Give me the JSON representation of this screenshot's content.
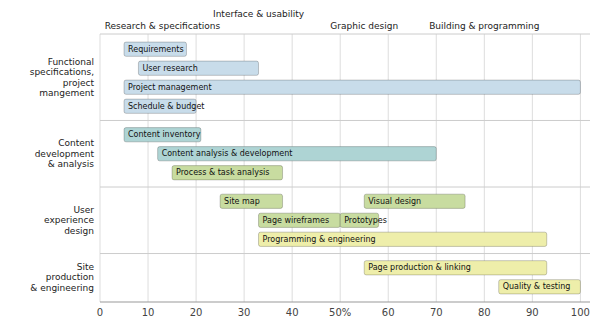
{
  "chart_data": {
    "type": "gantt",
    "orientation": "horizontal",
    "xlim": [
      0,
      102
    ],
    "xticks": [
      0,
      10,
      20,
      30,
      40,
      {
        "value": 50,
        "label": "50%"
      },
      60,
      70,
      80,
      90,
      100
    ],
    "grid": true,
    "annotations": [
      {
        "text": "Research & specifications",
        "x": 13
      },
      {
        "text": "Interface & usability",
        "x": 33
      },
      {
        "text": "Graphic design",
        "x": 55
      },
      {
        "text": "Building & programming",
        "x": 80
      }
    ],
    "groups": [
      {
        "label": "Functional\nspecifications,\nproject\nmangement",
        "rows": [
          [
            {
              "label": "Requirements",
              "start": 5,
              "end": 18,
              "color": "#c8dcea"
            }
          ],
          [
            {
              "label": "User research",
              "start": 8,
              "end": 33,
              "color": "#c8dcea"
            }
          ],
          [
            {
              "label": "Project management",
              "start": 5,
              "end": 100,
              "color": "#c8dcea"
            }
          ],
          [
            {
              "label": "Schedule & budget",
              "start": 5,
              "end": 20,
              "color": "#c8dcea"
            }
          ]
        ]
      },
      {
        "label": "Content\ndevelopment\n& analysis",
        "rows": [
          [
            {
              "label": "Content inventory",
              "start": 5,
              "end": 21,
              "color": "#aed4d4"
            }
          ],
          [
            {
              "label": "Content analysis & development",
              "start": 12,
              "end": 70,
              "color": "#aed4d4"
            }
          ],
          [
            {
              "label": "Process & task analysis",
              "start": 15,
              "end": 38,
              "color": "#c8dca0"
            }
          ]
        ]
      },
      {
        "label": "User\nexperience\ndesign",
        "rows": [
          [
            {
              "label": "Site map",
              "start": 25,
              "end": 38,
              "color": "#c8dca0"
            },
            {
              "label": "Visual design",
              "start": 55,
              "end": 76,
              "color": "#c8dca0"
            }
          ],
          [
            {
              "label": "Page wireframes",
              "start": 33,
              "end": 50,
              "color": "#c8dca0"
            },
            {
              "label": "Prototypes",
              "start": 50,
              "end": 58,
              "color": "#c8dca0"
            }
          ],
          [
            {
              "label": "Programming & engineering",
              "start": 33,
              "end": 93,
              "color": "#eeeeaa"
            }
          ]
        ]
      },
      {
        "label": "Site\nproduction\n& engineering",
        "rows": [
          [
            {
              "label": "Page production & linking",
              "start": 55,
              "end": 93,
              "color": "#eeeeaa"
            }
          ],
          [
            {
              "label": "Quality & testing",
              "start": 83,
              "end": 100,
              "color": "#eeeeaa"
            }
          ]
        ]
      }
    ]
  }
}
